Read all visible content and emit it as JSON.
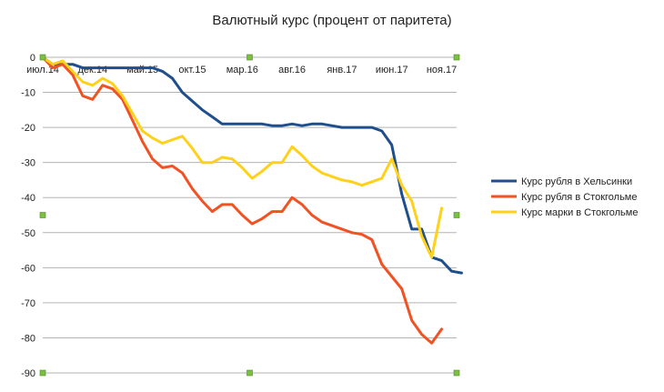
{
  "chart_data": {
    "type": "line",
    "title": "Валютный курс (процент от паритета)",
    "xlabel": "",
    "ylabel": "",
    "ylim": [
      -90,
      0
    ],
    "ytick_step": 10,
    "grid": true,
    "legend_position": "right",
    "x_tick_labels": [
      "июл.14",
      "дек.14",
      "май.15",
      "окт.15",
      "мар.16",
      "авг.16",
      "янв.17",
      "июн.17",
      "ноя.17"
    ],
    "x_tick_positions": [
      0,
      5,
      10,
      15,
      20,
      25,
      30,
      35,
      40
    ],
    "x_range": [
      0,
      41.5
    ],
    "series": [
      {
        "name": "Курс рубля в Хельсинки",
        "color": "#1f4e8c",
        "values": [
          0,
          -2,
          -2,
          -2,
          -3,
          -3,
          -3,
          -3,
          -3,
          -3,
          -3,
          -3,
          -4,
          -6,
          -10,
          -12.5,
          -15,
          -17,
          -19,
          -19,
          -19,
          -19,
          -19,
          -19.5,
          -19.5,
          -19,
          -19.5,
          -19,
          -19,
          -19.5,
          -20,
          -20,
          -20,
          -20,
          -21,
          -25,
          -39,
          -49,
          -49,
          -57,
          -58,
          -61,
          -61.5
        ]
      },
      {
        "name": "Курс рубля в Стокгольме",
        "color": "#f05223",
        "values": [
          0,
          -3,
          -2,
          -5,
          -11,
          -12,
          -8,
          -9,
          -12,
          -18,
          -24,
          -29,
          -31.5,
          -31,
          -33,
          -37.5,
          -41,
          -44,
          -42,
          -42,
          -45,
          -47.5,
          -46,
          -44,
          -44,
          -40,
          -42,
          -45,
          -47,
          -48,
          -49,
          -50,
          -50.5,
          -52,
          -59,
          -62.5,
          -66,
          -75,
          -79,
          -81.5,
          -77.5
        ]
      },
      {
        "name": "Курс марки в Стокгольме",
        "color": "#ffd11a",
        "values": [
          0,
          -2,
          -1,
          -4,
          -7,
          -8,
          -6,
          -7.5,
          -11,
          -16,
          -21,
          -23,
          -24.5,
          -23.5,
          -22.5,
          -26,
          -30,
          -30,
          -28.5,
          -29,
          -31.5,
          -34.5,
          -32.5,
          -30,
          -30,
          -25.5,
          -28,
          -31,
          -33,
          -34,
          -35,
          -35.5,
          -36.5,
          -35.5,
          -34.5,
          -29,
          -36.5,
          -41,
          -51,
          -57,
          -43
        ]
      }
    ]
  }
}
